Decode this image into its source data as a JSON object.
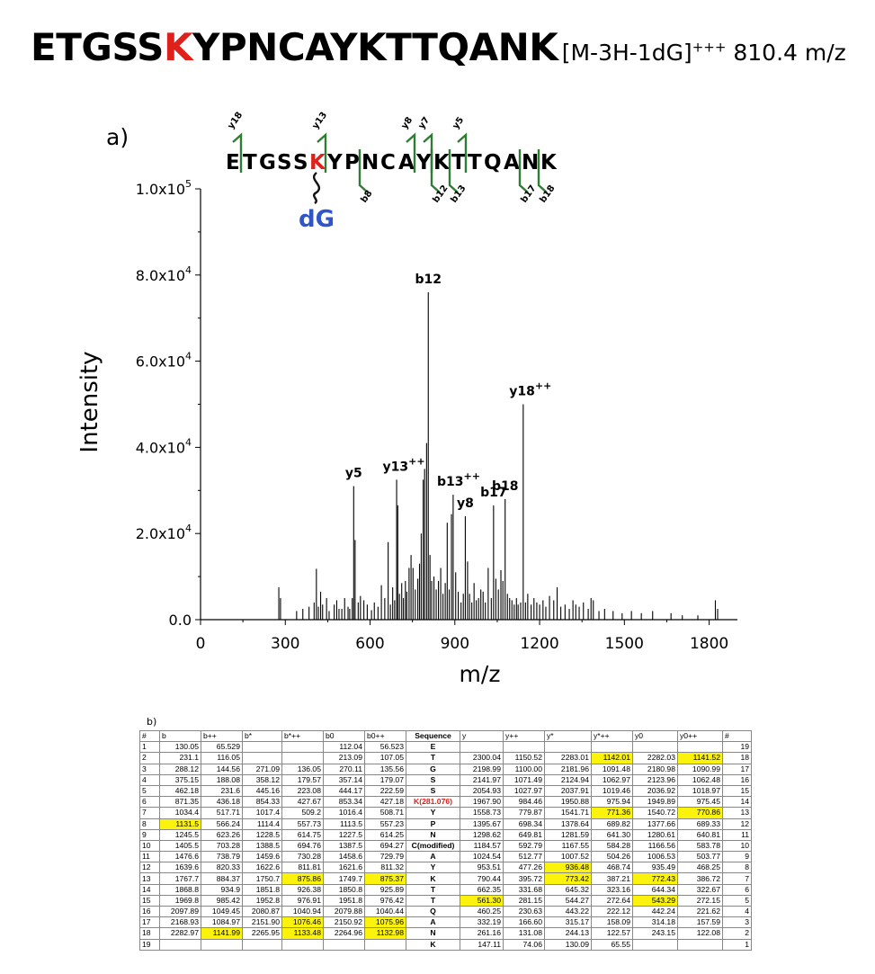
{
  "title": {
    "sequence_pre": "ETGSS",
    "sequence_mod": "K",
    "sequence_post": "YPNCAYKTTQANK",
    "ion_main": "[M-3H-1dG]",
    "ion_charge": "+++",
    "mz": "810.4 m/z"
  },
  "panel_a_label": "a)",
  "panel_b_label": "b)",
  "colors": {
    "modified": "#e0201a",
    "adduct": "#2f55c9",
    "fragment": "#2e7d32",
    "highlight": "#fbf30c"
  },
  "fragment_map": {
    "letters": [
      "E",
      "T",
      "G",
      "S",
      "S",
      "K",
      "Y",
      "P",
      "N",
      "C",
      "A",
      "Y",
      "K",
      "T",
      "T",
      "Q",
      "A",
      "N",
      "K"
    ],
    "modified_index": 5,
    "adduct_label": "dG",
    "y_labels": [
      {
        "label": "y18",
        "after": 1
      },
      {
        "label": "y13",
        "after": 6
      },
      {
        "label": "y8",
        "after": 11
      },
      {
        "label": "y7",
        "after": 12
      },
      {
        "label": "y5",
        "after": 14
      }
    ],
    "b_labels": [
      {
        "label": "b8",
        "after": 8
      },
      {
        "label": "b12",
        "after": 12
      },
      {
        "label": "b13",
        "after": 13
      },
      {
        "label": "b17",
        "after": 17
      },
      {
        "label": "b18",
        "after": 18
      }
    ]
  },
  "chart_data": {
    "type": "bar",
    "xlabel": "m/z",
    "ylabel": "Intensity",
    "xlim": [
      0,
      1900
    ],
    "ylim": [
      0,
      100000
    ],
    "xticks": [
      0,
      300,
      600,
      900,
      1200,
      1500,
      1800
    ],
    "yticks": [
      {
        "value": 0,
        "mant": "0.0",
        "exp": ""
      },
      {
        "value": 20000,
        "mant": "2.0x10",
        "exp": "4"
      },
      {
        "value": 40000,
        "mant": "4.0x10",
        "exp": "4"
      },
      {
        "value": 60000,
        "mant": "6.0x10",
        "exp": "4"
      },
      {
        "value": 80000,
        "mant": "8.0x10",
        "exp": "4"
      },
      {
        "value": 100000,
        "mant": "1.0x10",
        "exp": "5"
      }
    ],
    "peaks": [
      [
        277,
        7500
      ],
      [
        283,
        5000
      ],
      [
        340,
        2000
      ],
      [
        362,
        2500
      ],
      [
        384,
        3000
      ],
      [
        402,
        4000
      ],
      [
        410,
        11800
      ],
      [
        417,
        3000
      ],
      [
        425,
        6500
      ],
      [
        432,
        3500
      ],
      [
        446,
        5000
      ],
      [
        455,
        2000
      ],
      [
        473,
        3500
      ],
      [
        482,
        4500
      ],
      [
        490,
        2500
      ],
      [
        500,
        2500
      ],
      [
        510,
        5000
      ],
      [
        522,
        3000
      ],
      [
        528,
        2500
      ],
      [
        537,
        5000
      ],
      [
        542,
        31000
      ],
      [
        547,
        18500
      ],
      [
        558,
        4000
      ],
      [
        566,
        5500
      ],
      [
        578,
        4500
      ],
      [
        590,
        3500
      ],
      [
        605,
        2200
      ],
      [
        615,
        4000
      ],
      [
        628,
        3000
      ],
      [
        640,
        8000
      ],
      [
        652,
        5000
      ],
      [
        664,
        18000
      ],
      [
        672,
        3500
      ],
      [
        680,
        7500
      ],
      [
        687,
        4500
      ],
      [
        694,
        32500
      ],
      [
        698,
        26500
      ],
      [
        704,
        6000
      ],
      [
        712,
        8500
      ],
      [
        718,
        5000
      ],
      [
        725,
        9000
      ],
      [
        730,
        6500
      ],
      [
        738,
        12000
      ],
      [
        745,
        15000
      ],
      [
        752,
        12000
      ],
      [
        760,
        7000
      ],
      [
        769,
        9500
      ],
      [
        775,
        13000
      ],
      [
        781,
        20000
      ],
      [
        788,
        32500
      ],
      [
        793,
        35000
      ],
      [
        800,
        41000
      ],
      [
        806,
        76000
      ],
      [
        812,
        15000
      ],
      [
        818,
        9000
      ],
      [
        826,
        10000
      ],
      [
        834,
        7000
      ],
      [
        842,
        9000
      ],
      [
        850,
        12000
      ],
      [
        858,
        6000
      ],
      [
        866,
        8500
      ],
      [
        873,
        22500
      ],
      [
        880,
        7000
      ],
      [
        888,
        24500
      ],
      [
        894,
        29000
      ],
      [
        903,
        11000
      ],
      [
        912,
        6500
      ],
      [
        922,
        4000
      ],
      [
        930,
        6000
      ],
      [
        937,
        24000
      ],
      [
        945,
        13500
      ],
      [
        952,
        6000
      ],
      [
        960,
        4000
      ],
      [
        968,
        8500
      ],
      [
        976,
        4500
      ],
      [
        984,
        5000
      ],
      [
        992,
        7000
      ],
      [
        1000,
        6500
      ],
      [
        1008,
        4000
      ],
      [
        1018,
        12000
      ],
      [
        1029,
        5000
      ],
      [
        1037,
        26500
      ],
      [
        1045,
        9500
      ],
      [
        1054,
        7000
      ],
      [
        1063,
        11500
      ],
      [
        1070,
        9000
      ],
      [
        1078,
        28000
      ],
      [
        1086,
        6000
      ],
      [
        1094,
        5000
      ],
      [
        1102,
        4500
      ],
      [
        1110,
        3500
      ],
      [
        1118,
        5000
      ],
      [
        1124,
        3500
      ],
      [
        1133,
        4000
      ],
      [
        1142,
        50000
      ],
      [
        1150,
        4000
      ],
      [
        1158,
        6000
      ],
      [
        1170,
        3500
      ],
      [
        1180,
        5000
      ],
      [
        1190,
        4000
      ],
      [
        1200,
        3500
      ],
      [
        1212,
        4500
      ],
      [
        1222,
        3000
      ],
      [
        1235,
        5500
      ],
      [
        1250,
        4500
      ],
      [
        1262,
        7500
      ],
      [
        1275,
        3000
      ],
      [
        1290,
        3500
      ],
      [
        1305,
        2500
      ],
      [
        1318,
        4500
      ],
      [
        1328,
        3500
      ],
      [
        1340,
        3000
      ],
      [
        1355,
        4000
      ],
      [
        1372,
        2500
      ],
      [
        1382,
        5000
      ],
      [
        1390,
        4500
      ],
      [
        1410,
        2000
      ],
      [
        1430,
        2500
      ],
      [
        1460,
        2000
      ],
      [
        1492,
        1500
      ],
      [
        1525,
        2000
      ],
      [
        1560,
        1500
      ],
      [
        1600,
        2000
      ],
      [
        1665,
        1500
      ],
      [
        1705,
        1000
      ],
      [
        1760,
        1000
      ],
      [
        1822,
        4500
      ],
      [
        1830,
        2500
      ]
    ],
    "annotations": [
      {
        "label": "b12",
        "x": 806,
        "y": 76000
      },
      {
        "label": "y18",
        "sup": "++",
        "x": 1142,
        "y": 50000
      },
      {
        "label": "y5",
        "x": 542,
        "y": 31000
      },
      {
        "label": "y13",
        "sup": "++",
        "x": 694,
        "y": 32500
      },
      {
        "label": "b13",
        "sup": "++",
        "x": 888,
        "y": 29000
      },
      {
        "label": "y8",
        "x": 937,
        "y": 24000
      },
      {
        "label": "b17",
        "x": 1037,
        "y": 26500
      },
      {
        "label": "b18",
        "x": 1078,
        "y": 28000
      }
    ]
  },
  "table": {
    "headers": [
      "#",
      "b",
      "b++",
      "b*",
      "b*++",
      "b0",
      "b0++",
      "Sequence",
      "y",
      "y++",
      "y*",
      "y*++",
      "y0",
      "y0++",
      "#"
    ],
    "rows": [
      {
        "c": [
          "1",
          "130.05",
          "65.529",
          "",
          "",
          "112.04",
          "56.523",
          "E",
          "",
          "",
          "",
          "",
          "",
          "",
          "19"
        ],
        "hl": []
      },
      {
        "c": [
          "2",
          "231.1",
          "116.05",
          "",
          "",
          "213.09",
          "107.05",
          "T",
          "2300.04",
          "1150.52",
          "2283.01",
          "1142.01",
          "2282.03",
          "1141.52",
          "18"
        ],
        "hl": [
          11,
          13
        ]
      },
      {
        "c": [
          "3",
          "288.12",
          "144.56",
          "271.09",
          "136.05",
          "270.11",
          "135.56",
          "G",
          "2198.99",
          "1100.00",
          "2181.96",
          "1091.48",
          "2180.98",
          "1090.99",
          "17"
        ],
        "hl": []
      },
      {
        "c": [
          "4",
          "375.15",
          "188.08",
          "358.12",
          "179.57",
          "357.14",
          "179.07",
          "S",
          "2141.97",
          "1071.49",
          "2124.94",
          "1062.97",
          "2123.96",
          "1062.48",
          "16"
        ],
        "hl": []
      },
      {
        "c": [
          "5",
          "462.18",
          "231.6",
          "445.16",
          "223.08",
          "444.17",
          "222.59",
          "S",
          "2054.93",
          "1027.97",
          "2037.91",
          "1019.46",
          "2036.92",
          "1018.97",
          "15"
        ],
        "hl": []
      },
      {
        "c": [
          "6",
          "871.35",
          "436.18",
          "854.33",
          "427.67",
          "853.34",
          "427.18",
          "K(281.076)",
          "1967.90",
          "984.46",
          "1950.88",
          "975.94",
          "1949.89",
          "975.45",
          "14"
        ],
        "hl": [],
        "mod": true
      },
      {
        "c": [
          "7",
          "1034.4",
          "517.71",
          "1017.4",
          "509.2",
          "1016.4",
          "508.71",
          "Y",
          "1558.73",
          "779.87",
          "1541.71",
          "771.36",
          "1540.72",
          "770.86",
          "13"
        ],
        "hl": [
          11,
          13
        ]
      },
      {
        "c": [
          "8",
          "1131.5",
          "566.24",
          "1114.4",
          "557.73",
          "1113.5",
          "557.23",
          "P",
          "1395.67",
          "698.34",
          "1378.64",
          "689.82",
          "1377.66",
          "689.33",
          "12"
        ],
        "hl": [
          1
        ]
      },
      {
        "c": [
          "9",
          "1245.5",
          "623.26",
          "1228.5",
          "614.75",
          "1227.5",
          "614.25",
          "N",
          "1298.62",
          "649.81",
          "1281.59",
          "641.30",
          "1280.61",
          "640.81",
          "11"
        ],
        "hl": []
      },
      {
        "c": [
          "10",
          "1405.5",
          "703.28",
          "1388.5",
          "694.76",
          "1387.5",
          "694.27",
          "C(modified)",
          "1184.57",
          "592.79",
          "1167.55",
          "584.28",
          "1166.56",
          "583.78",
          "10"
        ],
        "hl": []
      },
      {
        "c": [
          "11",
          "1476.6",
          "738.79",
          "1459.6",
          "730.28",
          "1458.6",
          "729.79",
          "A",
          "1024.54",
          "512.77",
          "1007.52",
          "504.26",
          "1006.53",
          "503.77",
          "9"
        ],
        "hl": []
      },
      {
        "c": [
          "12",
          "1639.6",
          "820.33",
          "1622.6",
          "811.81",
          "1621.6",
          "811.32",
          "Y",
          "953.51",
          "477.26",
          "936.48",
          "468.74",
          "935.49",
          "468.25",
          "8"
        ],
        "hl": [
          10
        ]
      },
      {
        "c": [
          "13",
          "1767.7",
          "884.37",
          "1750.7",
          "875.86",
          "1749.7",
          "875.37",
          "K",
          "790.44",
          "395.72",
          "773.42",
          "387.21",
          "772.43",
          "386.72",
          "7"
        ],
        "hl": [
          4,
          6,
          10,
          12
        ]
      },
      {
        "c": [
          "14",
          "1868.8",
          "934.9",
          "1851.8",
          "926.38",
          "1850.8",
          "925.89",
          "T",
          "662.35",
          "331.68",
          "645.32",
          "323.16",
          "644.34",
          "322.67",
          "6"
        ],
        "hl": []
      },
      {
        "c": [
          "15",
          "1969.8",
          "985.42",
          "1952.8",
          "976.91",
          "1951.8",
          "976.42",
          "T",
          "561.30",
          "281.15",
          "544.27",
          "272.64",
          "543.29",
          "272.15",
          "5"
        ],
        "hl": [
          8,
          12
        ]
      },
      {
        "c": [
          "16",
          "2097.89",
          "1049.45",
          "2080.87",
          "1040.94",
          "2079.88",
          "1040.44",
          "Q",
          "460.25",
          "230.63",
          "443.22",
          "222.12",
          "442.24",
          "221.62",
          "4"
        ],
        "hl": []
      },
      {
        "c": [
          "17",
          "2168.93",
          "1084.97",
          "2151.90",
          "1076.46",
          "2150.92",
          "1075.96",
          "A",
          "332.19",
          "166.60",
          "315.17",
          "158.09",
          "314.18",
          "157.59",
          "3"
        ],
        "hl": [
          4,
          6
        ]
      },
      {
        "c": [
          "18",
          "2282.97",
          "1141.99",
          "2265.95",
          "1133.48",
          "2264.96",
          "1132.98",
          "N",
          "261.16",
          "131.08",
          "244.13",
          "122.57",
          "243.15",
          "122.08",
          "2"
        ],
        "hl": [
          2,
          4,
          6
        ]
      },
      {
        "c": [
          "19",
          "",
          "",
          "",
          "",
          "",
          "",
          "K",
          "147.11",
          "74.06",
          "130.09",
          "65.55",
          "",
          "",
          "1"
        ],
        "hl": []
      }
    ]
  }
}
